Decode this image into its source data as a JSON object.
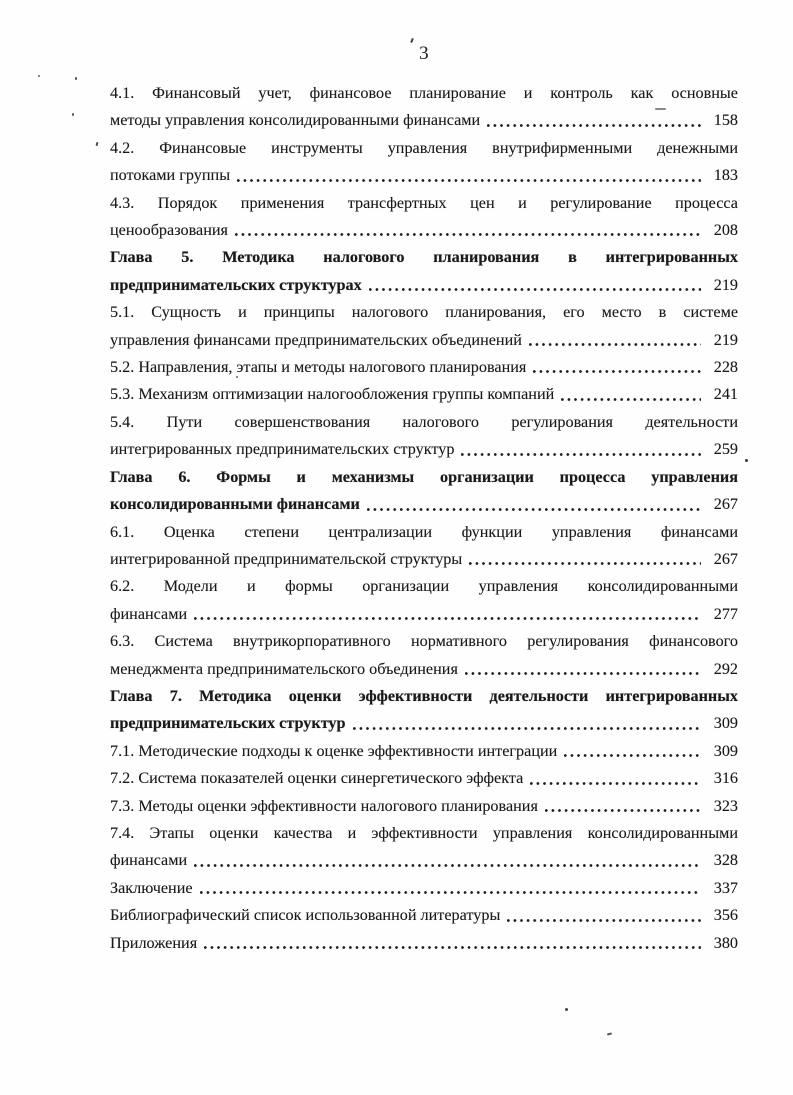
{
  "page": {
    "number": "3"
  },
  "colors": {
    "text": "#1a1a1a",
    "background": "#fefefe"
  },
  "toc": {
    "entries": [
      {
        "bold": false,
        "pre_lines": [
          "4.1. Финансовый учет, финансовое планирование и контроль как основные"
        ],
        "last_line": "методы управления консолидированными финансами",
        "page": "158"
      },
      {
        "bold": false,
        "pre_lines": [
          "4.2. Финансовые инструменты управления внутрифирменными денежными"
        ],
        "last_line": "потоками группы",
        "page": "183"
      },
      {
        "bold": false,
        "pre_lines": [
          "4.3. Порядок применения трансфертных цен и регулирование процесса"
        ],
        "last_line": "ценообразования",
        "page": "208"
      },
      {
        "bold": true,
        "pre_lines": [
          "Глава 5. Методика налогового планирования в интегрированных"
        ],
        "last_line": "предпринимательских структурах",
        "page": "219"
      },
      {
        "bold": false,
        "pre_lines": [
          "5.1. Сущность и принципы налогового планирования, его место в системе"
        ],
        "last_line": "управления финансами предпринимательских объединений",
        "page": "219"
      },
      {
        "bold": false,
        "pre_lines": [],
        "last_line": "5.2. Направления, этапы и методы налогового планирования",
        "page": "228"
      },
      {
        "bold": false,
        "pre_lines": [],
        "last_line": "5.3. Механизм оптимизации налогообложения группы компаний",
        "page": "241"
      },
      {
        "bold": false,
        "pre_lines": [
          "5.4. Пути совершенствования налогового регулирования деятельности"
        ],
        "last_line": "интегрированных предпринимательских структур",
        "page": "259"
      },
      {
        "bold": true,
        "pre_lines": [
          "Глава 6. Формы и механизмы организации процесса управления"
        ],
        "last_line": "консолидированными финансами",
        "page": "267"
      },
      {
        "bold": false,
        "pre_lines": [
          "6.1. Оценка степени централизации функции управления финансами"
        ],
        "last_line": "интегрированной предпринимательской структуры",
        "page": "267"
      },
      {
        "bold": false,
        "pre_lines": [
          "6.2. Модели и формы организации управления консолидированными"
        ],
        "last_line": "финансами",
        "page": "277"
      },
      {
        "bold": false,
        "pre_lines": [
          "6.3. Система внутрикорпоративного нормативного регулирования финансового"
        ],
        "last_line": "менеджмента предпринимательского объединения",
        "page": "292"
      },
      {
        "bold": true,
        "pre_lines": [
          "Глава 7. Методика оценки эффективности деятельности интегрированных"
        ],
        "last_line": "предпринимательских структур",
        "page": "309"
      },
      {
        "bold": false,
        "pre_lines": [],
        "last_line": "7.1. Методические подходы к оценке эффективности интеграции",
        "page": "309"
      },
      {
        "bold": false,
        "pre_lines": [],
        "last_line": "7.2. Система показателей оценки синергетического эффекта",
        "page": "316"
      },
      {
        "bold": false,
        "pre_lines": [],
        "last_line": "7.3. Методы оценки эффективности налогового планирования",
        "page": "323"
      },
      {
        "bold": false,
        "pre_lines": [
          "7.4. Этапы оценки качества и эффективности управления консолидированными"
        ],
        "last_line": "финансами",
        "page": "328"
      },
      {
        "bold": false,
        "pre_lines": [],
        "last_line": "Заключение",
        "page": "337"
      },
      {
        "bold": false,
        "pre_lines": [],
        "last_line": "Библиографический список использованной литературы",
        "page": "356"
      },
      {
        "bold": false,
        "pre_lines": [],
        "last_line": "Приложения",
        "page": "380"
      }
    ]
  }
}
